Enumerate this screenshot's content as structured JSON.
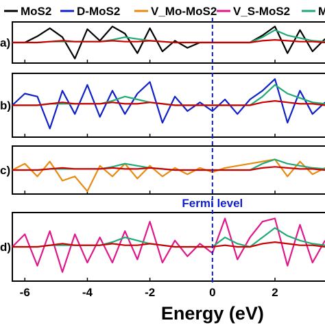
{
  "chart_data": [
    {
      "type": "line",
      "panel_label": "a)",
      "xlim": [
        -6.4,
        3.6
      ],
      "ylim": [
        -1,
        1
      ],
      "grid": false,
      "series": [
        {
          "name": "MoS2",
          "color": "#000000",
          "x": [
            -6.4,
            -6,
            -5.6,
            -5.2,
            -4.8,
            -4.4,
            -4,
            -3.6,
            -3.2,
            -2.8,
            -2.4,
            -2,
            -1.6,
            -1.2,
            -0.8,
            -0.4,
            0,
            0.4,
            0.8,
            1.2,
            1.6,
            2,
            2.4,
            2.8,
            3.2,
            3.6
          ],
          "y": [
            0,
            0,
            0.35,
            0.8,
            0.3,
            -0.9,
            0.75,
            0.1,
            0.9,
            0.5,
            -0.6,
            0.8,
            -0.5,
            0.1,
            -0.3,
            0,
            0,
            0,
            0,
            0,
            0.4,
            0.9,
            -0.6,
            0.7,
            -0.5,
            0.2
          ]
        },
        {
          "name": "V_S-MoS2",
          "color": "#1faa75",
          "x": [
            -6.4,
            -6,
            -5.6,
            -5.2,
            -4.8,
            -4.4,
            -4,
            -3.6,
            -3.2,
            -2.8,
            -2.4,
            -2,
            -1.6,
            -1.2,
            -0.8,
            -0.4,
            0,
            0.4,
            0.8,
            1.2,
            1.6,
            2,
            2.4,
            2.8,
            3.2,
            3.6
          ],
          "y": [
            0,
            0,
            0,
            0.05,
            0.05,
            0.05,
            0.05,
            0.05,
            0.15,
            0.3,
            0.2,
            0.1,
            0.05,
            0,
            0,
            0,
            0,
            0,
            0,
            0,
            0.3,
            0.7,
            0.4,
            0.25,
            0.1,
            0.05
          ]
        },
        {
          "name": "V_Mo-MoS2",
          "color": "#cc0000",
          "x": [
            -6.4,
            -6,
            -5.6,
            -5.2,
            -4.8,
            -4.4,
            -4,
            -3.6,
            -3.2,
            -2.8,
            -2.4,
            -2,
            -1.6,
            -1.2,
            -0.8,
            -0.4,
            0,
            0.4,
            0.8,
            1.2,
            1.6,
            2,
            2.4,
            2.8,
            3.2,
            3.6
          ],
          "y": [
            0,
            0,
            0,
            0.05,
            0.1,
            0.05,
            0.05,
            0.05,
            0.1,
            0.05,
            0.05,
            0.1,
            0.05,
            0,
            0,
            0,
            0,
            0,
            0,
            0,
            0.1,
            0.15,
            0.1,
            0.05,
            0.05,
            0
          ]
        }
      ]
    },
    {
      "type": "line",
      "panel_label": "b)",
      "xlim": [
        -6.4,
        3.6
      ],
      "ylim": [
        -1,
        1
      ],
      "grid": false,
      "series": [
        {
          "name": "D-MoS2",
          "color": "#1020c8",
          "x": [
            -6.4,
            -6,
            -5.6,
            -5.2,
            -4.8,
            -4.4,
            -4,
            -3.6,
            -3.2,
            -2.8,
            -2.4,
            -2,
            -1.6,
            -1.2,
            -0.8,
            -0.4,
            0,
            0.4,
            0.8,
            1.2,
            1.6,
            2,
            2.4,
            2.8,
            3.2,
            3.6
          ],
          "y": [
            0,
            0.4,
            0.3,
            -0.8,
            0.5,
            -0.3,
            0.7,
            -0.4,
            0.5,
            -0.3,
            0.4,
            0.8,
            -0.6,
            0.3,
            -0.2,
            0.1,
            -0.2,
            0.2,
            -0.3,
            0.2,
            0.5,
            0.9,
            -0.6,
            0.5,
            -0.3,
            0.1
          ]
        },
        {
          "name": "V_S-MoS2",
          "color": "#1faa75",
          "x": [
            -6.4,
            -6,
            -5.6,
            -5.2,
            -4.8,
            -4.4,
            -4,
            -3.6,
            -3.2,
            -2.8,
            -2.4,
            -2,
            -1.6,
            -1.2,
            -0.8,
            -0.4,
            0,
            0.4,
            0.8,
            1.2,
            1.6,
            2,
            2.4,
            2.8,
            3.2,
            3.6
          ],
          "y": [
            0,
            0,
            0,
            0.05,
            0.05,
            0.05,
            0.05,
            0.05,
            0.15,
            0.3,
            0.2,
            0.1,
            0.05,
            0,
            0,
            0,
            0,
            0,
            0,
            0,
            0.3,
            0.7,
            0.4,
            0.25,
            0.1,
            0.05
          ]
        },
        {
          "name": "V_Mo-MoS2",
          "color": "#cc0000",
          "x": [
            -6.4,
            -6,
            -5.6,
            -5.2,
            -4.8,
            -4.4,
            -4,
            -3.6,
            -3.2,
            -2.8,
            -2.4,
            -2,
            -1.6,
            -1.2,
            -0.8,
            -0.4,
            0,
            0.4,
            0.8,
            1.2,
            1.6,
            2,
            2.4,
            2.8,
            3.2,
            3.6
          ],
          "y": [
            0,
            0,
            0,
            0.05,
            0.1,
            0.05,
            0.05,
            0.05,
            0.1,
            0.05,
            0.05,
            0.1,
            0.05,
            0,
            0,
            0,
            0,
            0,
            0,
            0,
            0.1,
            0.15,
            0.1,
            0.05,
            0.05,
            0
          ]
        }
      ]
    },
    {
      "type": "line",
      "panel_label": "c)",
      "xlim": [
        -6.4,
        3.6
      ],
      "ylim": [
        -1,
        1
      ],
      "grid": false,
      "series": [
        {
          "name": "V_Mo-MoS2",
          "color": "#e88a10",
          "x": [
            -6.4,
            -6,
            -5.6,
            -5.2,
            -4.8,
            -4.4,
            -4,
            -3.6,
            -3.2,
            -2.8,
            -2.4,
            -2,
            -1.6,
            -1.2,
            -0.8,
            -0.4,
            0,
            0.4,
            0.8,
            1.2,
            1.6,
            2,
            2.4,
            2.8,
            3.2,
            3.6
          ],
          "y": [
            0,
            0.3,
            -0.3,
            0.4,
            -0.5,
            -0.3,
            -1.0,
            0.2,
            -0.3,
            0.3,
            -0.4,
            0.2,
            -0.3,
            0.1,
            -0.2,
            0.1,
            -0.1,
            0.1,
            0.2,
            0.3,
            0.4,
            0.5,
            -0.3,
            0.4,
            -0.2,
            0.1
          ]
        },
        {
          "name": "V_S-MoS2",
          "color": "#1faa75",
          "x": [
            -6.4,
            -6,
            -5.6,
            -5.2,
            -4.8,
            -4.4,
            -4,
            -3.6,
            -3.2,
            -2.8,
            -2.4,
            -2,
            -1.6,
            -1.2,
            -0.8,
            -0.4,
            0,
            0.4,
            0.8,
            1.2,
            1.6,
            2,
            2.4,
            2.8,
            3.2,
            3.6
          ],
          "y": [
            0,
            0,
            0,
            0.05,
            0.05,
            0.05,
            0.05,
            0.05,
            0.15,
            0.3,
            0.2,
            0.1,
            0.05,
            0,
            0,
            0,
            0,
            0,
            0,
            0,
            0.3,
            0.5,
            0.3,
            0.2,
            0.1,
            0.05
          ]
        },
        {
          "name": "V_Mo-MoS2",
          "color": "#cc0000",
          "x": [
            -6.4,
            -6,
            -5.6,
            -5.2,
            -4.8,
            -4.4,
            -4,
            -3.6,
            -3.2,
            -2.8,
            -2.4,
            -2,
            -1.6,
            -1.2,
            -0.8,
            -0.4,
            0,
            0.4,
            0.8,
            1.2,
            1.6,
            2,
            2.4,
            2.8,
            3.2,
            3.6
          ],
          "y": [
            0,
            0,
            0,
            0.05,
            0.1,
            0.05,
            0.05,
            0.05,
            0.1,
            0.05,
            0.05,
            0.1,
            0.05,
            0,
            0,
            0,
            0,
            0,
            0,
            0,
            0.1,
            0.15,
            0.1,
            0.05,
            0.05,
            0
          ]
        }
      ]
    },
    {
      "type": "line",
      "panel_label": "d)",
      "xlim": [
        -6.4,
        3.6
      ],
      "ylim": [
        -1,
        1
      ],
      "grid": false,
      "series": [
        {
          "name": "V_S-MoS2",
          "color": "#e0178a",
          "x": [
            -6.4,
            -6,
            -5.6,
            -5.2,
            -4.8,
            -4.4,
            -4,
            -3.6,
            -3.2,
            -2.8,
            -2.4,
            -2,
            -1.6,
            -1.2,
            -0.8,
            -0.4,
            0,
            0.4,
            0.8,
            1.2,
            1.6,
            2,
            2.4,
            2.8,
            3.2,
            3.6
          ],
          "y": [
            0,
            0.4,
            -0.6,
            0.5,
            -0.8,
            0.4,
            -0.5,
            0.3,
            -0.5,
            0.5,
            -0.4,
            0.8,
            -0.5,
            0.2,
            -0.3,
            0.1,
            -0.2,
            0.9,
            -0.4,
            0.3,
            0.8,
            0.9,
            -0.6,
            0.7,
            -0.5,
            0.2
          ]
        },
        {
          "name": "V_S-MoS2",
          "color": "#1faa75",
          "x": [
            -6.4,
            -6,
            -5.6,
            -5.2,
            -4.8,
            -4.4,
            -4,
            -3.6,
            -3.2,
            -2.8,
            -2.4,
            -2,
            -1.6,
            -1.2,
            -0.8,
            -0.4,
            0,
            0.4,
            0.8,
            1.2,
            1.6,
            2,
            2.4,
            2.8,
            3.2,
            3.6
          ],
          "y": [
            0,
            0,
            0,
            0.05,
            0.05,
            0.05,
            0.05,
            0.05,
            0.15,
            0.3,
            0.2,
            0.1,
            0.05,
            0,
            0,
            0,
            0,
            0.3,
            0.1,
            0,
            0.3,
            0.6,
            0.35,
            0.2,
            0.1,
            0.05
          ]
        },
        {
          "name": "V_Mo-MoS2",
          "color": "#cc0000",
          "x": [
            -6.4,
            -6,
            -5.6,
            -5.2,
            -4.8,
            -4.4,
            -4,
            -3.6,
            -3.2,
            -2.8,
            -2.4,
            -2,
            -1.6,
            -1.2,
            -0.8,
            -0.4,
            0,
            0.4,
            0.8,
            1.2,
            1.6,
            2,
            2.4,
            2.8,
            3.2,
            3.6
          ],
          "y": [
            0,
            0,
            0,
            0.05,
            0.1,
            0.05,
            0.05,
            0.05,
            0.1,
            0.05,
            0.05,
            0.1,
            0.05,
            0,
            0,
            0,
            0,
            0.05,
            0,
            0,
            0.1,
            0.15,
            0.1,
            0.05,
            0.05,
            0
          ]
        }
      ]
    }
  ],
  "legend": [
    {
      "label": "MoS2",
      "color": "#000000"
    },
    {
      "label": "D-MoS2",
      "color": "#1020c8"
    },
    {
      "label": "V_Mo-MoS2",
      "color": "#e88a10"
    },
    {
      "label": "V_S-MoS2",
      "color": "#e0178a"
    },
    {
      "label": "M",
      "color": "#1faa75"
    }
  ],
  "xaxis": {
    "label": "Energy (eV)",
    "ticks": [
      -6,
      -4,
      -2,
      0,
      2
    ]
  },
  "annotation": {
    "text": "Fermi level",
    "color": "#1020c8"
  }
}
